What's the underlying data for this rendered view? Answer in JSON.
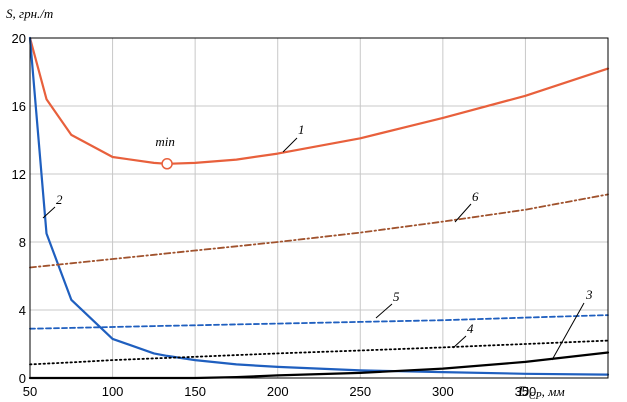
{
  "chart_data": {
    "type": "line",
    "title": "",
    "ylabel": "S, грн./т",
    "xlabel": "D",
    "xlabel_sub": "СР",
    "xlabel_unit": ", мм",
    "xlim": [
      50,
      400
    ],
    "ylim": [
      0,
      20
    ],
    "grid": true,
    "x_ticks": [
      50,
      100,
      150,
      200,
      250,
      300,
      350
    ],
    "y_ticks": [
      0,
      4,
      8,
      12,
      16,
      20
    ],
    "x": [
      50,
      60,
      75,
      100,
      125,
      133,
      150,
      175,
      200,
      250,
      300,
      350,
      400
    ],
    "series": [
      {
        "name": "1",
        "color": "#e8603c",
        "style": "solid",
        "values": [
          20,
          16.4,
          14.3,
          13.0,
          12.65,
          12.6,
          12.65,
          12.85,
          13.2,
          14.1,
          15.3,
          16.6,
          18.2
        ]
      },
      {
        "name": "2",
        "color": "#1f5fbf",
        "style": "solid",
        "values": [
          20,
          8.5,
          4.6,
          2.3,
          1.45,
          1.3,
          1.05,
          0.8,
          0.65,
          0.45,
          0.35,
          0.25,
          0.2
        ]
      },
      {
        "name": "3",
        "color": "#000000",
        "style": "solid",
        "values": [
          0,
          0,
          0,
          0,
          0,
          0,
          0,
          0.05,
          0.15,
          0.3,
          0.55,
          0.95,
          1.5
        ]
      },
      {
        "name": "4",
        "color": "#000000",
        "style": "dotted",
        "values": [
          0.8,
          0.85,
          0.92,
          1.05,
          1.15,
          1.18,
          1.25,
          1.35,
          1.45,
          1.62,
          1.8,
          2.0,
          2.2
        ]
      },
      {
        "name": "5",
        "color": "#1f5fbf",
        "style": "dashed",
        "values": [
          2.9,
          2.92,
          2.95,
          3.0,
          3.05,
          3.07,
          3.1,
          3.15,
          3.2,
          3.3,
          3.4,
          3.55,
          3.7
        ]
      },
      {
        "name": "6",
        "color": "#a0522d",
        "style": "dashdot",
        "values": [
          6.5,
          6.6,
          6.75,
          7.0,
          7.25,
          7.33,
          7.5,
          7.75,
          8.0,
          8.55,
          9.2,
          9.9,
          10.8
        ]
      }
    ],
    "min_marker": {
      "label": "min",
      "x": 133,
      "y": 12.6
    },
    "labels": {
      "c1": "1",
      "c2": "2",
      "c3": "3",
      "c4": "4",
      "c5": "5",
      "c6": "6"
    }
  }
}
